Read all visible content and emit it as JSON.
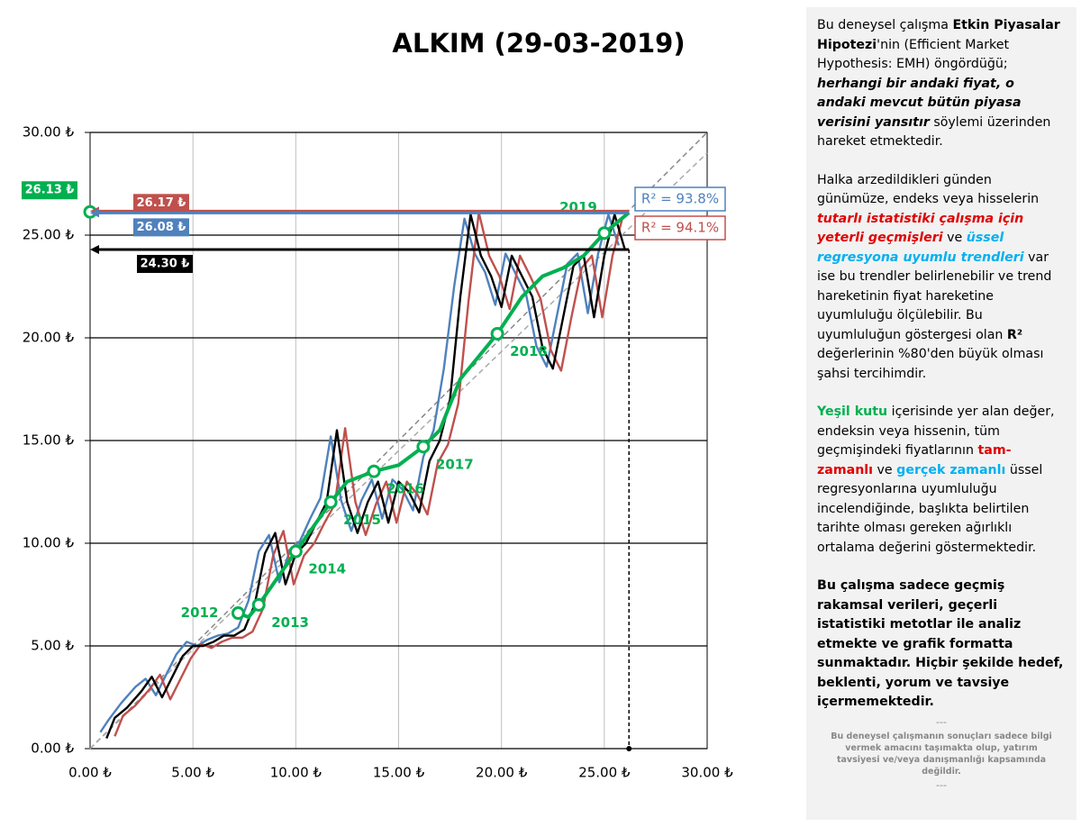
{
  "chart_data": {
    "type": "line",
    "title": "ALKIM (29-03-2019)",
    "xlim": [
      0,
      30
    ],
    "ylim": [
      0,
      30
    ],
    "xticks": [
      {
        "value": 0,
        "label": "0.00 ₺"
      },
      {
        "value": 5,
        "label": "5.00 ₺"
      },
      {
        "value": 10,
        "label": "10.00 ₺"
      },
      {
        "value": 15,
        "label": "15.00 ₺"
      },
      {
        "value": 20,
        "label": "20.00 ₺"
      },
      {
        "value": 25,
        "label": "25.00 ₺"
      },
      {
        "value": 30,
        "label": "30.00 ₺"
      }
    ],
    "yticks": [
      {
        "value": 0,
        "label": "0.00 ₺"
      },
      {
        "value": 5,
        "label": "5.00 ₺"
      },
      {
        "value": 10,
        "label": "10.00 ₺"
      },
      {
        "value": 15,
        "label": "15.00 ₺"
      },
      {
        "value": 20,
        "label": "20.00 ₺"
      },
      {
        "value": 25,
        "label": "25.00 ₺"
      },
      {
        "value": 30,
        "label": "30.00 ₺"
      }
    ],
    "grid": true,
    "trendlines": [
      {
        "color": "#888888",
        "x": [
          0,
          30
        ],
        "y": [
          0,
          30
        ]
      },
      {
        "color": "#aaaaaa",
        "x": [
          0,
          30
        ],
        "y": [
          0,
          29
        ]
      }
    ],
    "series": [
      {
        "color": "#4f81bd",
        "x": [
          0.5,
          0.9,
          1.5,
          2.2,
          2.7,
          3.2,
          3.7,
          4.2,
          4.7,
          5.2,
          5.7,
          6.2,
          6.7,
          7.2,
          7.7,
          8.2,
          8.7,
          9.2,
          9.7,
          10.2,
          10.7,
          11.2,
          11.7,
          12.2,
          12.7,
          13.2,
          13.7,
          14.2,
          14.7,
          15.2,
          15.7,
          16.2,
          16.7,
          17.2,
          17.7,
          18.2,
          18.7,
          19.2,
          19.7,
          20.2,
          20.7,
          21.2,
          21.7,
          22.2,
          22.7,
          23.2,
          23.7,
          24.2,
          24.7,
          25.2,
          25.7
        ],
        "y": [
          0.8,
          1.4,
          2.2,
          3.0,
          3.4,
          2.6,
          3.6,
          4.6,
          5.2,
          5.0,
          5.3,
          5.5,
          5.6,
          5.9,
          7.2,
          9.6,
          10.4,
          8.1,
          9.6,
          10.1,
          11.2,
          12.2,
          15.2,
          12.1,
          10.6,
          12.1,
          13.1,
          11.2,
          13.1,
          12.6,
          11.6,
          14.2,
          15.5,
          18.5,
          22.5,
          25.8,
          24.1,
          23.2,
          21.6,
          24.1,
          23.1,
          22.1,
          19.6,
          18.6,
          21.1,
          23.6,
          24.1,
          21.2,
          24.1,
          26.0,
          24.5
        ]
      },
      {
        "color": "#c0504d",
        "x": [
          1.2,
          1.6,
          2.2,
          2.9,
          3.4,
          3.9,
          4.4,
          4.9,
          5.4,
          5.9,
          6.4,
          6.9,
          7.4,
          7.9,
          8.4,
          8.9,
          9.4,
          9.9,
          10.4,
          10.9,
          11.4,
          11.9,
          12.4,
          12.9,
          13.4,
          13.9,
          14.4,
          14.9,
          15.4,
          15.9,
          16.4,
          16.9,
          17.4,
          17.9,
          18.4,
          18.9,
          19.4,
          19.9,
          20.4,
          20.9,
          21.4,
          21.9,
          22.4,
          22.9,
          23.4,
          23.9,
          24.4,
          24.9,
          25.4,
          25.9
        ],
        "y": [
          0.6,
          1.6,
          2.1,
          2.9,
          3.6,
          2.4,
          3.4,
          4.4,
          5.1,
          4.9,
          5.2,
          5.4,
          5.4,
          5.7,
          6.8,
          9.4,
          10.6,
          8.0,
          9.4,
          10.0,
          11.0,
          11.9,
          15.6,
          12.0,
          10.4,
          11.9,
          13.0,
          11.0,
          13.0,
          12.4,
          11.4,
          13.9,
          14.8,
          16.8,
          21.8,
          26.1,
          24.0,
          23.0,
          21.4,
          24.0,
          23.0,
          21.9,
          19.4,
          18.4,
          21.0,
          23.4,
          24.0,
          21.0,
          24.0,
          25.9
        ]
      },
      {
        "color": "#000000",
        "x": [
          0.8,
          1.2,
          1.8,
          2.5,
          3.0,
          3.5,
          4.0,
          4.5,
          5.0,
          5.5,
          6.0,
          6.5,
          7.0,
          7.5,
          8.0,
          8.5,
          9.0,
          9.5,
          10.0,
          10.5,
          11.0,
          11.5,
          12.0,
          12.5,
          13.0,
          13.5,
          14.0,
          14.5,
          15.0,
          15.5,
          16.0,
          16.5,
          17.0,
          17.5,
          18.0,
          18.5,
          19.0,
          19.5,
          20.0,
          20.5,
          21.0,
          21.5,
          22.0,
          22.5,
          23.0,
          23.5,
          24.0,
          24.5,
          25.0,
          25.5,
          26.0
        ],
        "y": [
          0.5,
          1.5,
          2.0,
          2.8,
          3.5,
          2.5,
          3.5,
          4.5,
          5.0,
          5.0,
          5.2,
          5.5,
          5.5,
          5.8,
          7.0,
          9.5,
          10.5,
          8.0,
          9.5,
          10.0,
          11.0,
          12.0,
          15.5,
          12.0,
          10.5,
          12.0,
          13.0,
          11.0,
          13.0,
          12.5,
          11.5,
          14.0,
          15.0,
          17.0,
          22.0,
          26.0,
          24.0,
          23.0,
          21.5,
          24.0,
          23.0,
          22.0,
          19.5,
          18.5,
          21.0,
          23.5,
          24.0,
          21.0,
          24.0,
          26.0,
          24.3
        ]
      },
      {
        "color": "#00b050",
        "x": [
          7.2,
          7.7,
          8.2,
          10.0,
          11.7,
          12.5,
          13.8,
          15.0,
          16.2,
          17.0,
          18.0,
          19.8,
          21.0,
          22.0,
          23.0,
          24.0,
          25.0,
          26.2
        ],
        "y": [
          6.6,
          6.4,
          7.0,
          9.6,
          12.0,
          13.0,
          13.5,
          13.8,
          14.7,
          15.5,
          18.0,
          20.2,
          22.0,
          23.0,
          23.4,
          24.0,
          25.1,
          26.1
        ],
        "point_labels": [
          "2012",
          null,
          "2013",
          "2014",
          "2015",
          null,
          "2016",
          null,
          "2017",
          null,
          null,
          "2018",
          null,
          null,
          null,
          null,
          "2019",
          null
        ]
      }
    ],
    "vline": 26.2,
    "hlines": [
      {
        "value": 26.13,
        "label": "26.13 ₺",
        "color": "#00b050"
      },
      {
        "value": 26.17,
        "label": "26.17 ₺",
        "color": "#c0504d"
      },
      {
        "value": 26.08,
        "label": "26.08 ₺",
        "color": "#4f81bd"
      },
      {
        "value": 24.3,
        "label": "24.30 ₺",
        "color": "#000000"
      }
    ],
    "annotations": [
      {
        "text": "R² = 93.8%",
        "color": "#4f81bd"
      },
      {
        "text": "R² = 94.1%",
        "color": "#c0504d"
      }
    ]
  },
  "panel": {
    "paragraphs": [
      [
        {
          "text": "Bu deneysel çalışma "
        },
        {
          "text": "Etkin Piyasalar Hipotezi",
          "bold": true
        },
        {
          "text": "'nin (Efficient Market Hypothesis: EMH) öngördüğü; "
        },
        {
          "text": "herhangi bir andaki fiyat, o andaki mevcut bütün piyasa verisini yansıtır",
          "bold": true,
          "italic": true
        },
        {
          "text": "  söylemi üzerinden hareket etmektedir."
        }
      ],
      [
        {
          "text": "Halka arzedildikleri günden günümüze, endeks veya hisselerin "
        },
        {
          "text": "tutarlı istatistiki çalışma için yeterli geçmişleri",
          "bold": true,
          "italic": true,
          "color": "#e00000"
        },
        {
          "text": " ve "
        },
        {
          "text": "üssel regresyona uyumlu trendleri",
          "bold": true,
          "italic": true,
          "color": "#00b0f0"
        },
        {
          "text": " var ise bu trendler belirlenebilir ve trend hareketinin fiyat hareketine uyumluluğu ölçülebilir.  Bu uyumluluğun göstergesi olan "
        },
        {
          "text": "R²",
          "bold": true
        },
        {
          "text": " değerlerinin %80'den büyük olması şahsi tercihimdir."
        }
      ],
      [
        {
          "text": "Yeşil kutu",
          "bold": true,
          "color": "#00b050"
        },
        {
          "text": " içerisinde yer alan değer, endeksin veya hissenin, tüm geçmişindeki fiyatlarının "
        },
        {
          "text": "tam-zamanlı",
          "bold": true,
          "color": "#e00000"
        },
        {
          "text": " ve "
        },
        {
          "text": "gerçek zamanlı",
          "bold": true,
          "color": "#00b0f0"
        },
        {
          "text": " üssel regresyonlarına uyumluluğu incelendiğinde, başlıkta belirtilen tarihte olması gereken ağırlıklı ortalama değerini göstermektedir."
        }
      ],
      [
        {
          "text": "Bu çalışma sadece geçmiş rakamsal verileri, geçerli istatistiki metotlar ile  analiz etmekte ve grafik formatta sunmaktadır. Hiçbir şekilde hedef, beklenti, yorum ve tavsiye içermemektedir.",
          "bold": true
        }
      ]
    ],
    "separator": "---",
    "disclaimer": "Bu deneysel çalışmanın sonuçları sadece bilgi vermek amacını taşımakta olup, yatırım tavsiyesi ve/veya danışmanlığı kapsamında değildir.",
    "separator_end": "---"
  }
}
